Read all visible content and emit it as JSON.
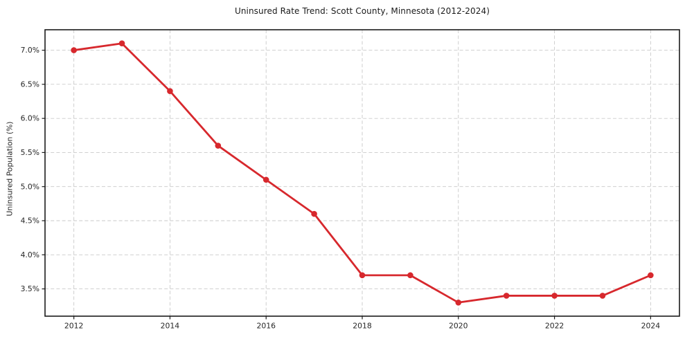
{
  "chart_data": {
    "type": "line",
    "title": "Uninsured Rate Trend: Scott County, Minnesota (2012-2024)",
    "xlabel": "",
    "ylabel": "Uninsured Population (%)",
    "x": [
      2012,
      2013,
      2014,
      2015,
      2016,
      2017,
      2018,
      2019,
      2020,
      2021,
      2022,
      2023,
      2024
    ],
    "values": [
      7.0,
      7.1,
      6.4,
      5.6,
      5.1,
      4.6,
      3.7,
      3.7,
      3.3,
      3.4,
      3.4,
      3.4,
      3.7
    ],
    "xlim": [
      2011.4,
      2024.6
    ],
    "ylim": [
      3.1,
      7.3
    ],
    "xticks": {
      "values": [
        2012,
        2014,
        2016,
        2018,
        2020,
        2022,
        2024
      ],
      "labels": [
        "2012",
        "2014",
        "2016",
        "2018",
        "2020",
        "2022",
        "2024"
      ]
    },
    "yticks": {
      "values": [
        3.5,
        4.0,
        4.5,
        5.0,
        5.5,
        6.0,
        6.5,
        7.0
      ],
      "labels": [
        "3.5%",
        "4.0%",
        "4.5%",
        "5.0%",
        "5.5%",
        "6.0%",
        "6.5%",
        "7.0%"
      ]
    },
    "grid": true,
    "legend": "none",
    "marker": "circle",
    "line_color": "#d7282d",
    "grid_color": "#c9c9c9",
    "axis_color": "#1a1a1a",
    "tick_label_color": "#262626"
  }
}
